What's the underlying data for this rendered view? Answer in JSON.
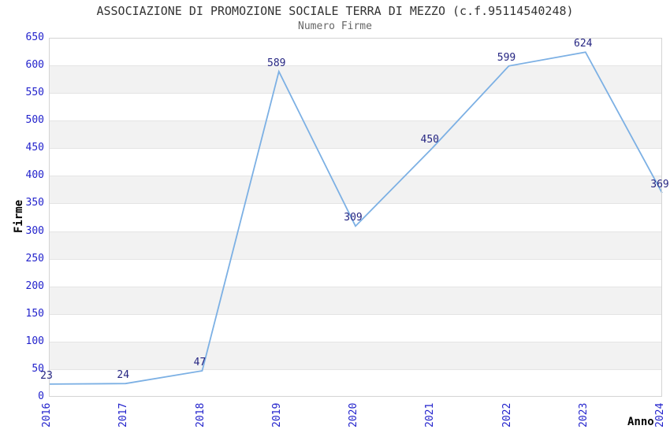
{
  "chart_data": {
    "type": "line",
    "title": "ASSOCIAZIONE DI PROMOZIONE SOCIALE TERRA DI MEZZO (c.f.95114540248)",
    "subtitle": "Numero Firme",
    "xlabel": "Anno",
    "ylabel": "Firme",
    "categories": [
      "2016",
      "2017",
      "2018",
      "2019",
      "2020",
      "2021",
      "2022",
      "2023",
      "2024"
    ],
    "values": [
      23,
      24,
      47,
      589,
      309,
      450,
      599,
      624,
      369
    ],
    "ylim": [
      0,
      650
    ],
    "ytick_step": 50,
    "grid": "horizontal alternating bands",
    "legend": "none",
    "colors": {
      "line": "#7cb0e4",
      "tick_label": "#2222cc",
      "value_label": "#252582",
      "band_gray": "#f2f2f2",
      "band_white": "#ffffff",
      "gridline": "#e4e4e4",
      "plot_border": "#d4d4d4",
      "title": "#333333",
      "subtitle": "#666666",
      "axis_label": "#000000",
      "background": "#ffffff"
    }
  }
}
